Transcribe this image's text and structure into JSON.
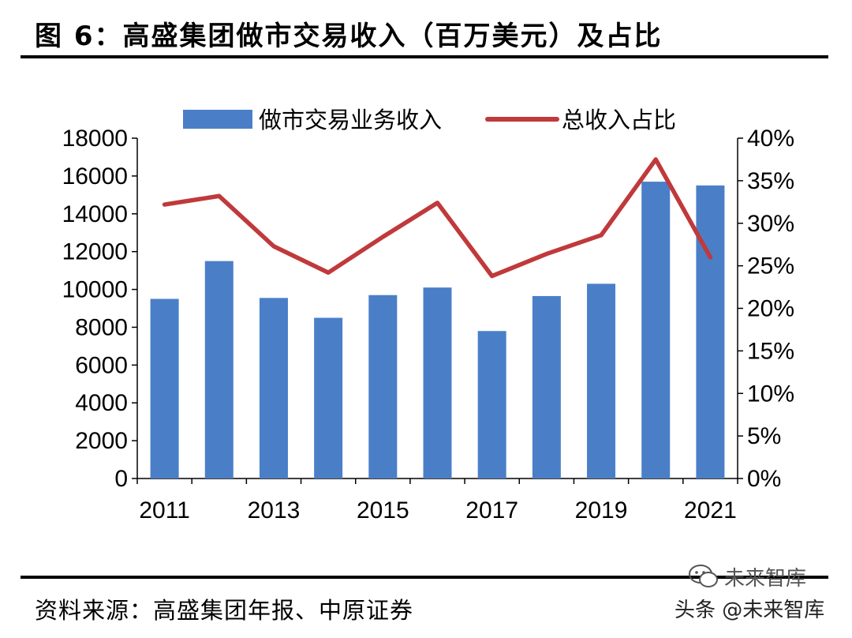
{
  "title": "图 6：高盛集团做市交易收入（百万美元）及占比",
  "source": "资料来源：高盛集团年报、中原证券",
  "watermark": {
    "prefix": "头条",
    "handle": "@未来智库",
    "top_text": "未来智库",
    "icon": "wechat-icon"
  },
  "colors": {
    "bar": "#4a7fc8",
    "line": "#c0393b",
    "axis": "#000000"
  },
  "chart_data": {
    "type": "bar",
    "categories": [
      "2011",
      "2012",
      "2013",
      "2014",
      "2015",
      "2016",
      "2017",
      "2018",
      "2019",
      "2020",
      "2021"
    ],
    "x_tick_labels": [
      "2011",
      "",
      "2013",
      "",
      "2015",
      "",
      "2017",
      "",
      "2019",
      "",
      "2021"
    ],
    "series": [
      {
        "name": "做市交易业务收入",
        "kind": "bar",
        "axis": "left",
        "values": [
          9500,
          11500,
          9550,
          8500,
          9700,
          10100,
          7800,
          9650,
          10300,
          15700,
          15500
        ]
      },
      {
        "name": "总收入占比",
        "kind": "line",
        "axis": "right",
        "values": [
          32.2,
          33.2,
          27.3,
          24.2,
          28.4,
          32.4,
          23.8,
          26.4,
          28.6,
          37.5,
          26.0
        ]
      }
    ],
    "left_axis": {
      "min": 0,
      "max": 18000,
      "ticks": [
        "0",
        "2000",
        "4000",
        "6000",
        "8000",
        "10000",
        "12000",
        "14000",
        "16000",
        "18000"
      ]
    },
    "right_axis": {
      "min": 0,
      "max": 40,
      "ticks": [
        "0%",
        "5%",
        "10%",
        "15%",
        "20%",
        "25%",
        "30%",
        "35%",
        "40%"
      ]
    },
    "legend": [
      "做市交易业务收入",
      "总收入占比"
    ],
    "legend_position": "top"
  }
}
